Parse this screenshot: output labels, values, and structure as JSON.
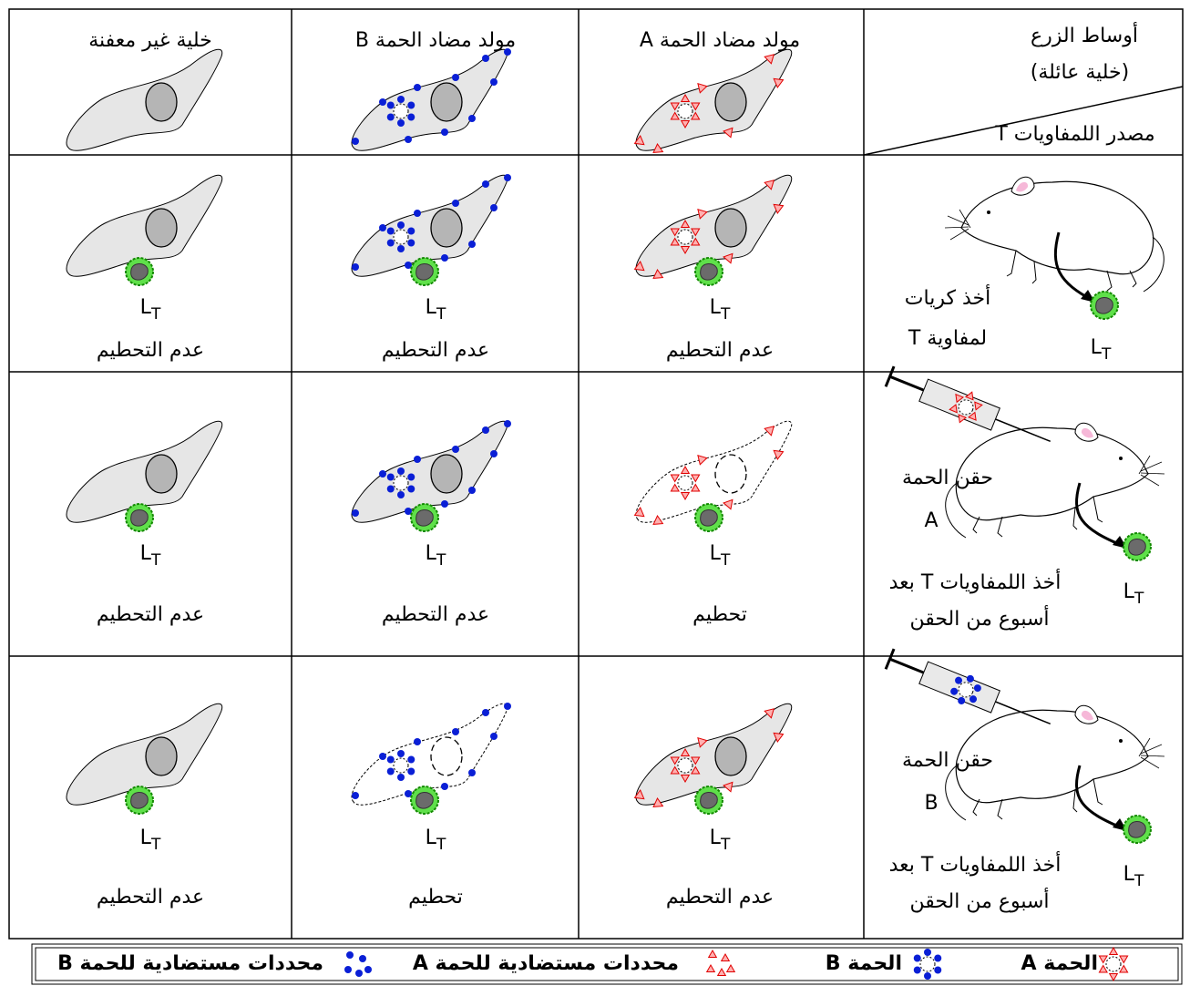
{
  "header": {
    "culture_label": [
      "أوساط الزرع",
      "(خلية عائلة)"
    ],
    "source_label": "مصدر اللمفاويات T",
    "columns": [
      "مولد مضاد الحمة A",
      "مولد مضاد الحمة B",
      "خلية غير معفنة"
    ]
  },
  "lymphocyte": {
    "main": "L",
    "sub": "T"
  },
  "rows": [
    {
      "source": [
        "أخذ كريات",
        "لمفاوية   T"
      ],
      "results": [
        "عدم التحطيم",
        "عدم التحطيم",
        "عدم التحطيم"
      ]
    },
    {
      "injection": [
        "حقن الحمة",
        "A"
      ],
      "source": [
        "أخذ اللمفاويات T بعد",
        "أسبوع من الحقن"
      ],
      "results": [
        "تحطيم",
        "عدم التحطيم",
        "عدم التحطيم"
      ]
    },
    {
      "injection": [
        "حقن الحمة",
        "B"
      ],
      "source": [
        "أخذ اللمفاويات T بعد",
        "أسبوع من الحقن"
      ],
      "results": [
        "عدم التحطيم",
        "تحطيم",
        "عدم التحطيم"
      ]
    }
  ],
  "legend": [
    "الحمة A",
    "الحمة B",
    "محددات مستضادية للحمة A",
    "محددات مستضادية للحمة B"
  ]
}
